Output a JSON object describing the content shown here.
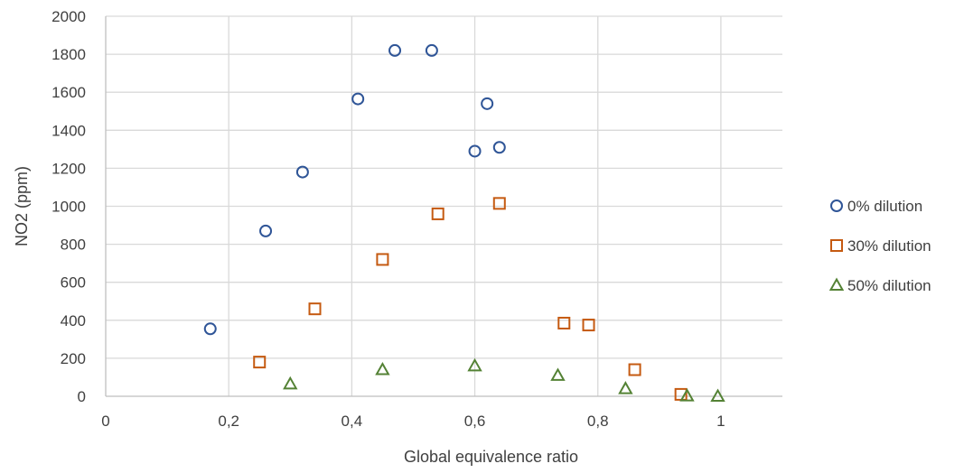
{
  "chart_data": {
    "type": "scatter",
    "xlabel": "Global equivalence ratio",
    "ylabel": "NO2 (ppm)",
    "xlim": [
      0,
      1.1
    ],
    "ylim": [
      0,
      2000
    ],
    "x_ticks": [
      0,
      0.2,
      0.4,
      0.6,
      0.8,
      1
    ],
    "x_tick_labels": [
      "0",
      "0,2",
      "0,4",
      "0,6",
      "0,8",
      "1"
    ],
    "y_ticks": [
      0,
      200,
      400,
      600,
      800,
      1000,
      1200,
      1400,
      1600,
      1800,
      2000
    ],
    "y_tick_labels": [
      "0",
      "200",
      "400",
      "600",
      "800",
      "1000",
      "1200",
      "1400",
      "1600",
      "1800",
      "2000"
    ],
    "grid": true,
    "legend_position": "right",
    "series": [
      {
        "name": "0% dilution",
        "marker": "circle",
        "color": "#2F5597",
        "points": [
          [
            0.17,
            355
          ],
          [
            0.26,
            870
          ],
          [
            0.32,
            1180
          ],
          [
            0.41,
            1565
          ],
          [
            0.47,
            1820
          ],
          [
            0.53,
            1820
          ],
          [
            0.6,
            1290
          ],
          [
            0.62,
            1540
          ],
          [
            0.64,
            1310
          ]
        ]
      },
      {
        "name": "30% dilution",
        "marker": "square",
        "color": "#C55A11",
        "points": [
          [
            0.25,
            180
          ],
          [
            0.34,
            460
          ],
          [
            0.45,
            720
          ],
          [
            0.54,
            960
          ],
          [
            0.64,
            1015
          ],
          [
            0.745,
            385
          ],
          [
            0.785,
            375
          ],
          [
            0.86,
            140
          ],
          [
            0.935,
            10
          ]
        ]
      },
      {
        "name": "50% dilution",
        "marker": "triangle",
        "color": "#548235",
        "points": [
          [
            0.3,
            65
          ],
          [
            0.45,
            140
          ],
          [
            0.6,
            160
          ],
          [
            0.735,
            110
          ],
          [
            0.845,
            40
          ],
          [
            0.945,
            2
          ],
          [
            0.995,
            0
          ]
        ]
      }
    ]
  }
}
